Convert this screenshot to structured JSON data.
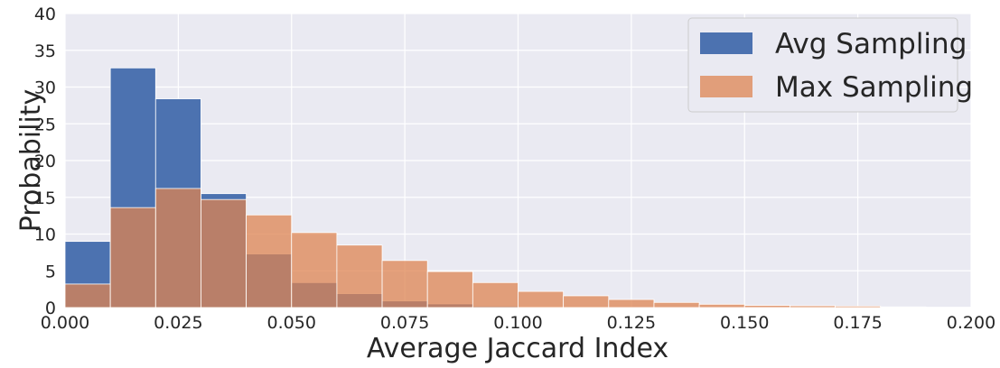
{
  "chart_data": {
    "type": "bar",
    "title": "",
    "xlabel": "Average Jaccard Index",
    "ylabel": "Probability",
    "xlim": [
      0,
      0.2
    ],
    "ylim": [
      0,
      40
    ],
    "xticks": [
      "0.000",
      "0.025",
      "0.050",
      "0.075",
      "0.100",
      "0.125",
      "0.150",
      "0.175",
      "0.200"
    ],
    "yticks": [
      "0",
      "5",
      "10",
      "15",
      "20",
      "25",
      "30",
      "35",
      "40"
    ],
    "grid": true,
    "legend": "top-right",
    "bin_edges": [
      0.0,
      0.01,
      0.02,
      0.03,
      0.04,
      0.05,
      0.06,
      0.07,
      0.08,
      0.09,
      0.1,
      0.11,
      0.12,
      0.13,
      0.14,
      0.15,
      0.16,
      0.17,
      0.18,
      0.19,
      0.2
    ],
    "series": [
      {
        "name": "Avg Sampling",
        "color": "#4c72b0",
        "values": [
          9.0,
          32.6,
          28.4,
          15.5,
          7.3,
          3.4,
          1.9,
          0.9,
          0.5,
          0.2,
          0.1,
          0.05,
          0.02,
          0.01,
          0,
          0,
          0,
          0,
          0,
          0
        ]
      },
      {
        "name": "Max Sampling",
        "color": "#dd8452",
        "values": [
          3.2,
          13.6,
          16.2,
          14.7,
          12.6,
          10.2,
          8.5,
          6.4,
          4.9,
          3.4,
          2.2,
          1.6,
          1.1,
          0.7,
          0.45,
          0.3,
          0.25,
          0.2,
          0.1,
          0.05
        ]
      }
    ]
  }
}
